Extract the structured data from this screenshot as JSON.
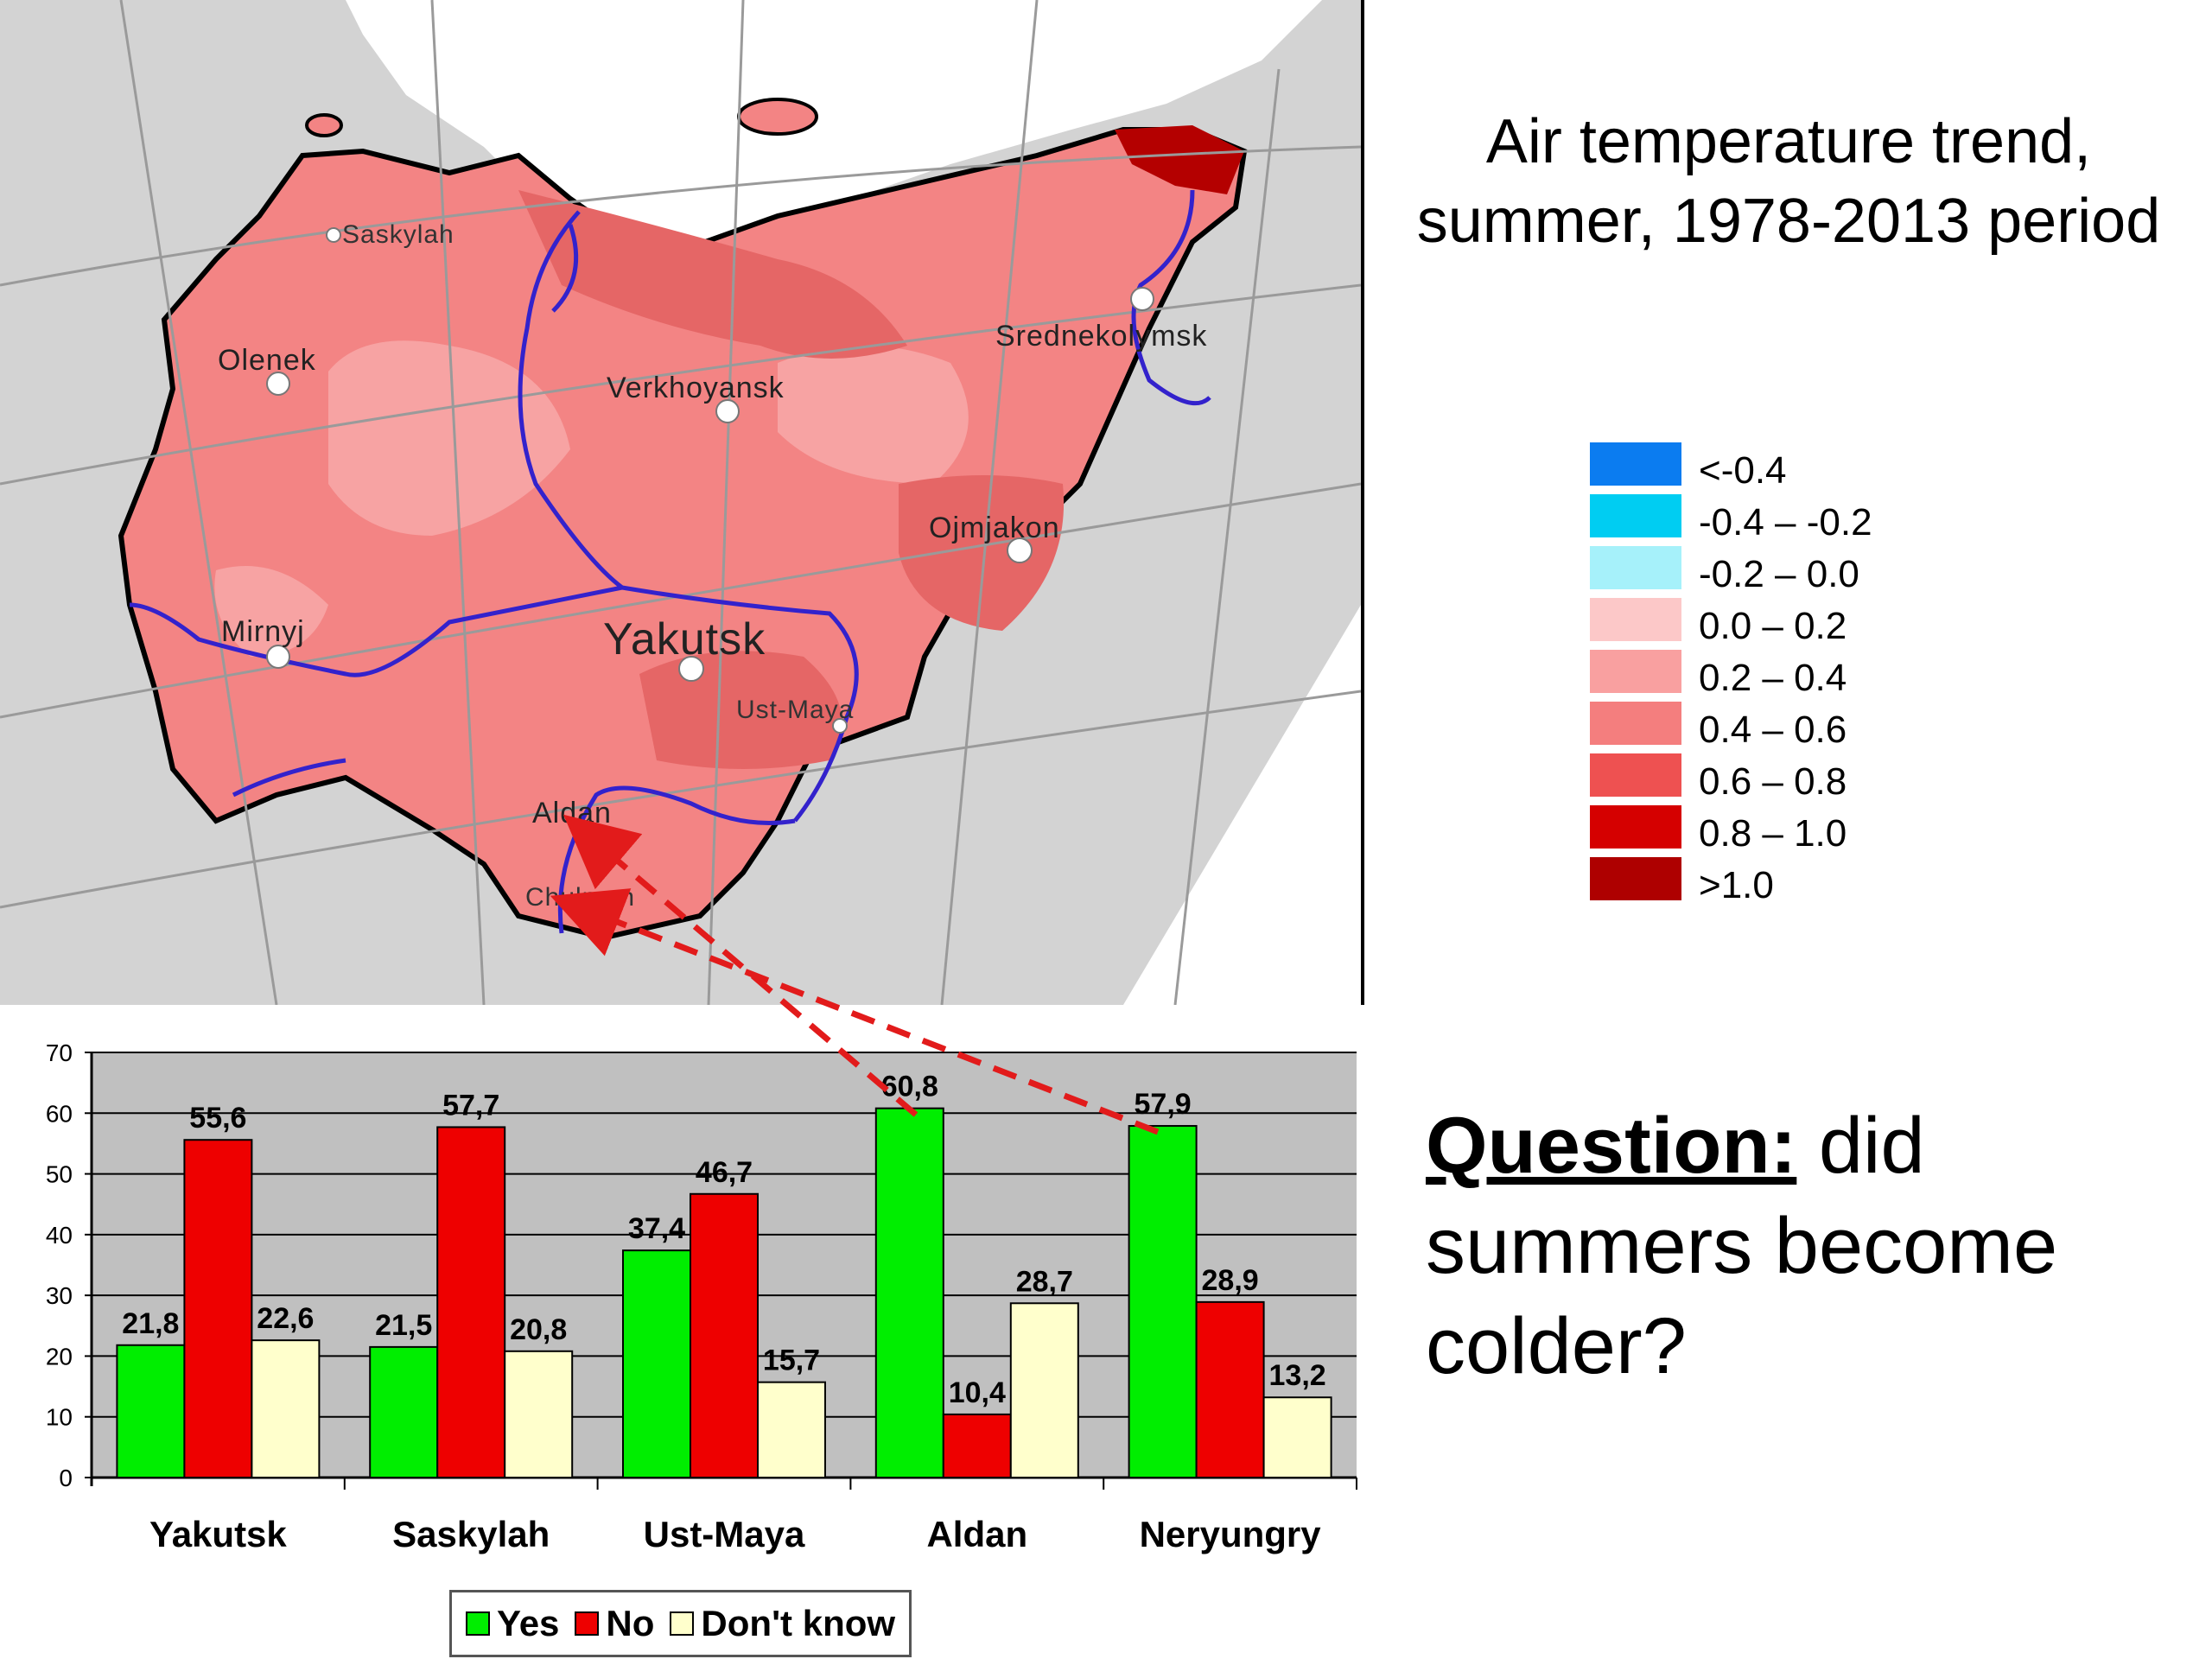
{
  "title": {
    "line1": "Air temperature trend,",
    "line2": "summer, 1978-2013 period"
  },
  "map": {
    "labels": [
      "Saskylah",
      "Olenek",
      "Verkhoyansk",
      "Srednekolymsk",
      "Ojmjakon",
      "Mirnyj",
      "Yakutsk",
      "Ust-Maya",
      "Aldan",
      "Chulman"
    ],
    "colors": {
      "land": "#d3d3d3",
      "sea": "#ffffff",
      "region_base": "#f38484",
      "region_light": "#f7a3a3",
      "region_dark": "#e56666",
      "region_darkest": "#b40000",
      "river": "#3322cc",
      "grid": "#9a9a9a",
      "connector": "#e21b1b"
    }
  },
  "legend": {
    "items": [
      {
        "label": "<-0.4",
        "color": "#0b7cf0"
      },
      {
        "label": "-0.4 – -0.2",
        "color": "#00cdf2"
      },
      {
        "label": "-0.2 – 0.0",
        "color": "#a6f1fa"
      },
      {
        "label": "0.0 – 0.2",
        "color": "#fcc8c8"
      },
      {
        "label": "0.2 – 0.4",
        "color": "#f9a0a0"
      },
      {
        "label": "0.4 – 0.6",
        "color": "#f47e7e"
      },
      {
        "label": "0.6 – 0.8",
        "color": "#ee5151"
      },
      {
        "label": "0.8 – 1.0",
        "color": "#d50000"
      },
      {
        "label": ">1.0",
        "color": "#ae0000"
      }
    ]
  },
  "question": {
    "strong": "Question:",
    "rest": " did summers become colder?"
  },
  "chart_data": {
    "type": "bar",
    "categories": [
      "Yakutsk",
      "Saskylah",
      "Ust-Maya",
      "Aldan",
      "Neryungry"
    ],
    "series": [
      {
        "name": "Yes",
        "values": [
          21.8,
          21.5,
          37.4,
          60.8,
          57.9
        ],
        "labels": [
          "21,8",
          "21,5",
          "37,4",
          "60,8",
          "57,9"
        ],
        "color": "#00ee00"
      },
      {
        "name": "No",
        "values": [
          55.6,
          57.7,
          46.7,
          10.4,
          28.9
        ],
        "labels": [
          "55,6",
          "57,7",
          "46,7",
          "10,4",
          "28,9"
        ],
        "color": "#ee0000"
      },
      {
        "name": "Don't know",
        "values": [
          22.6,
          20.8,
          15.7,
          28.7,
          13.2
        ],
        "labels": [
          "22,6",
          "20,8",
          "15,7",
          "28,7",
          "13,2"
        ],
        "color": "#ffffcc"
      }
    ],
    "ylim": [
      0,
      70
    ],
    "yticks": [
      "0",
      "10",
      "20",
      "30",
      "40",
      "50",
      "60",
      "70"
    ],
    "grid": true,
    "plot_background": "#c0c0c0",
    "legend_position": "bottom"
  }
}
